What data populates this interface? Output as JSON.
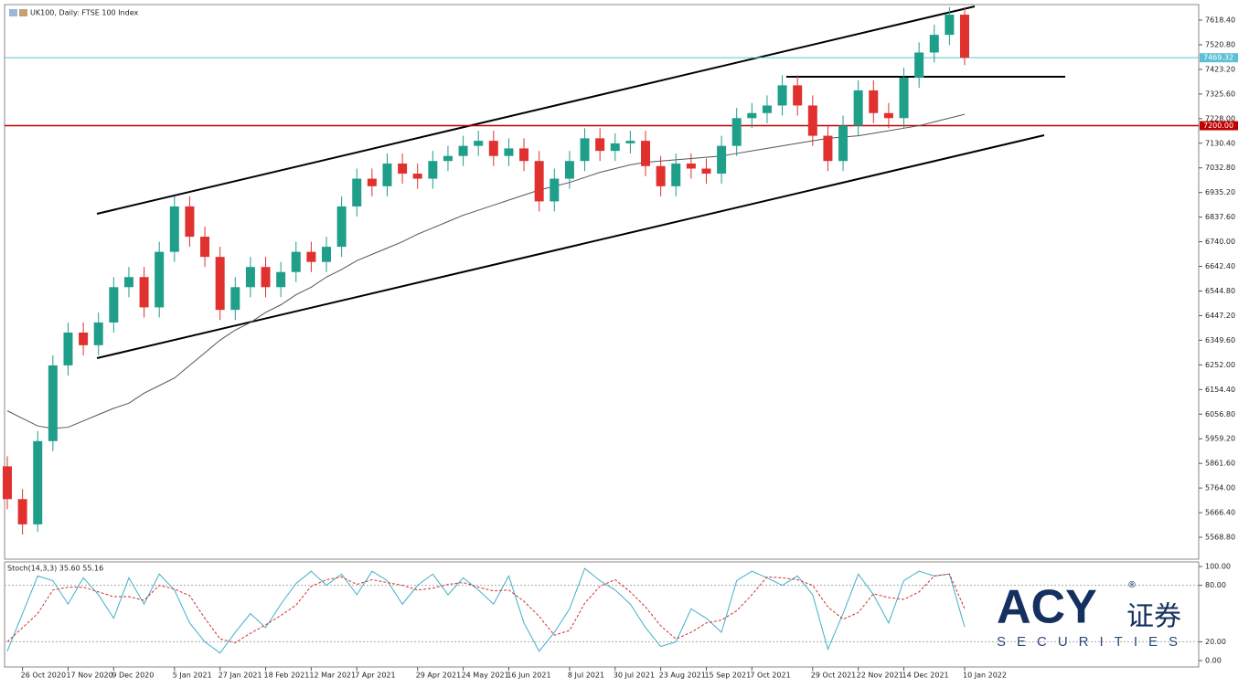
{
  "chart_data": {
    "type": "candlestick",
    "title": "UK100, Daily:  FTSE 100 Index",
    "categories": [
      null,
      "26 Oct 2020",
      null,
      null,
      "17 Nov 2020",
      null,
      null,
      "9 Dec 2020",
      null,
      null,
      null,
      "5 Jan 2021",
      null,
      null,
      "27 Jan 2021",
      null,
      null,
      "18 Feb 2021",
      null,
      null,
      "12 Mar 2021",
      null,
      null,
      "7 Apr 2021",
      null,
      null,
      null,
      "29 Apr 2021",
      null,
      null,
      "24 May 2021",
      null,
      null,
      "16 Jun 2021",
      null,
      null,
      null,
      "8 Jul 2021",
      null,
      null,
      "30 Jul 2021",
      null,
      null,
      "23 Aug 2021",
      null,
      null,
      "15 Sep 2021",
      null,
      null,
      "7 Oct 2021",
      null,
      null,
      null,
      "29 Oct 2021",
      null,
      null,
      "22 Nov 2021",
      null,
      null,
      "14 Dec 2021",
      null,
      null,
      null,
      "10 Jan 2022"
    ],
    "open": [
      5850,
      5720,
      5620,
      5950,
      6250,
      6380,
      6330,
      6420,
      6560,
      6600,
      6480,
      6700,
      6880,
      6760,
      6680,
      6470,
      6560,
      6640,
      6560,
      6620,
      6700,
      6660,
      6720,
      6880,
      6990,
      6960,
      7050,
      7010,
      6990,
      7060,
      7080,
      7120,
      7140,
      7080,
      7110,
      7060,
      6900,
      6990,
      7060,
      7150,
      7100,
      7130,
      7140,
      7040,
      6960,
      7050,
      7030,
      7010,
      7120,
      7230,
      7250,
      7280,
      7360,
      7280,
      7160,
      7060,
      7200,
      7340,
      7250,
      7230,
      7390,
      7490,
      7560,
      7640
    ],
    "high": [
      5890,
      5760,
      5990,
      6290,
      6420,
      6420,
      6460,
      6600,
      6640,
      6640,
      6740,
      6920,
      6920,
      6800,
      6720,
      6600,
      6680,
      6680,
      6660,
      6740,
      6740,
      6760,
      6920,
      7030,
      7030,
      7090,
      7090,
      7050,
      7100,
      7120,
      7160,
      7180,
      7180,
      7150,
      7150,
      7100,
      7030,
      7100,
      7190,
      7190,
      7170,
      7180,
      7180,
      7080,
      7090,
      7090,
      7070,
      7160,
      7270,
      7290,
      7320,
      7400,
      7400,
      7320,
      7200,
      7240,
      7380,
      7380,
      7290,
      7430,
      7530,
      7600,
      7670,
      7670
    ],
    "low": [
      5680,
      5580,
      5590,
      5910,
      6210,
      6290,
      6290,
      6380,
      6520,
      6440,
      6440,
      6660,
      6720,
      6640,
      6430,
      6430,
      6520,
      6520,
      6520,
      6580,
      6620,
      6620,
      6680,
      6840,
      6920,
      6920,
      6970,
      6950,
      6950,
      7020,
      7040,
      7080,
      7040,
      7040,
      7020,
      6860,
      6860,
      6950,
      7020,
      7060,
      7060,
      7090,
      7000,
      6920,
      6920,
      6990,
      6970,
      6970,
      7080,
      7190,
      7210,
      7240,
      7240,
      7120,
      7020,
      7020,
      7160,
      7210,
      7190,
      7190,
      7350,
      7450,
      7520,
      7440
    ],
    "close": [
      5720,
      5620,
      5950,
      6250,
      6380,
      6330,
      6420,
      6560,
      6600,
      6480,
      6700,
      6880,
      6760,
      6680,
      6470,
      6560,
      6640,
      6560,
      6620,
      6700,
      6660,
      6720,
      6880,
      6990,
      6960,
      7050,
      7010,
      6990,
      7060,
      7080,
      7120,
      7140,
      7080,
      7110,
      7060,
      6900,
      6990,
      7060,
      7150,
      7100,
      7130,
      7140,
      7040,
      6960,
      7050,
      7030,
      7010,
      7120,
      7230,
      7250,
      7280,
      7360,
      7280,
      7160,
      7060,
      7200,
      7340,
      7250,
      7230,
      7390,
      7490,
      7560,
      7640,
      7469.32
    ],
    "ma": [
      6070,
      6040,
      6010,
      6000,
      6005,
      6030,
      6055,
      6080,
      6100,
      6140,
      6170,
      6200,
      6250,
      6300,
      6350,
      6390,
      6420,
      6460,
      6490,
      6530,
      6560,
      6600,
      6630,
      6665,
      6690,
      6715,
      6740,
      6770,
      6795,
      6820,
      6845,
      6865,
      6885,
      6905,
      6925,
      6945,
      6960,
      6975,
      6995,
      7015,
      7030,
      7045,
      7055,
      7060,
      7065,
      7070,
      7075,
      7080,
      7090,
      7100,
      7110,
      7120,
      7130,
      7140,
      7150,
      7155,
      7160,
      7170,
      7180,
      7190,
      7200,
      7215,
      7230,
      7245
    ],
    "up_color": "#1f9e8a",
    "down_color": "#e0312f",
    "ma_color": "#555555",
    "ylim": [
      5482,
      7680
    ],
    "yticks": [
      {
        "value": 7618.4,
        "label": "7618.40"
      },
      {
        "value": 7520.8,
        "label": "7520.80"
      },
      {
        "value": 7423.2,
        "label": "7423.20"
      },
      {
        "value": 7325.6,
        "label": "7325.60"
      },
      {
        "value": 7228,
        "label": "7228.00"
      },
      {
        "value": 7130.4,
        "label": "7130.40"
      },
      {
        "value": 7032.8,
        "label": "7032.80"
      },
      {
        "value": 6935.2,
        "label": "6935.20"
      },
      {
        "value": 6837.6,
        "label": "6837.60"
      },
      {
        "value": 6740,
        "label": "6740.00"
      },
      {
        "value": 6642.4,
        "label": "6642.40"
      },
      {
        "value": 6544.8,
        "label": "6544.80"
      },
      {
        "value": 6447.2,
        "label": "6447.20"
      },
      {
        "value": 6349.6,
        "label": "6349.60"
      },
      {
        "value": 6252,
        "label": "6252.00"
      },
      {
        "value": 6154.4,
        "label": "6154.40"
      },
      {
        "value": 6056.8,
        "label": "6056.80"
      },
      {
        "value": 5959.2,
        "label": "5959.20"
      },
      {
        "value": 5861.6,
        "label": "5861.60"
      },
      {
        "value": 5764,
        "label": "5764.00"
      },
      {
        "value": 5666.4,
        "label": "5666.40"
      },
      {
        "value": 5568.8,
        "label": "5568.80"
      }
    ],
    "price_lines": [
      {
        "value": 7469.32,
        "label": "7469.32",
        "color": "#5bc0d6"
      },
      {
        "value": 7200,
        "label": "7200.00",
        "color": "#c00000"
      }
    ],
    "stoch": {
      "title": "Stoch(14,3,3) 35.60 55.16",
      "k": [
        10,
        50,
        90,
        85,
        60,
        88,
        70,
        45,
        88,
        60,
        92,
        75,
        40,
        20,
        8,
        30,
        50,
        35,
        60,
        82,
        95,
        80,
        92,
        70,
        95,
        85,
        60,
        80,
        92,
        70,
        88,
        75,
        60,
        90,
        40,
        10,
        30,
        55,
        98,
        85,
        75,
        60,
        35,
        15,
        20,
        55,
        45,
        30,
        85,
        95,
        88,
        80,
        90,
        70,
        12,
        50,
        92,
        70,
        40,
        85,
        95,
        90,
        92,
        35.6
      ],
      "d": [
        20,
        35,
        50,
        75,
        78,
        78,
        73,
        68,
        68,
        64,
        80,
        76,
        69,
        45,
        23,
        19,
        29,
        38,
        48,
        59,
        79,
        86,
        89,
        81,
        86,
        83,
        80,
        75,
        77,
        81,
        83,
        78,
        74,
        75,
        63,
        47,
        27,
        32,
        61,
        79,
        86,
        73,
        57,
        37,
        23,
        30,
        40,
        43,
        53,
        70,
        89,
        88,
        86,
        80,
        57,
        44,
        51,
        71,
        67,
        65,
        73,
        90,
        92,
        55.16
      ],
      "k_color": "#3fb0c8",
      "d_color": "#d0312f",
      "ylim": [
        -6.8,
        104.9
      ],
      "yticks": [
        {
          "value": 100,
          "label": "100.00"
        },
        {
          "value": 80,
          "label": "80.00"
        },
        {
          "value": 20,
          "label": "20.00"
        },
        {
          "value": 0,
          "label": "0.00"
        }
      ]
    }
  },
  "logo": {
    "brand": "ACY",
    "cn": "证券",
    "sub": "SECURITIES",
    "reg": "®"
  }
}
